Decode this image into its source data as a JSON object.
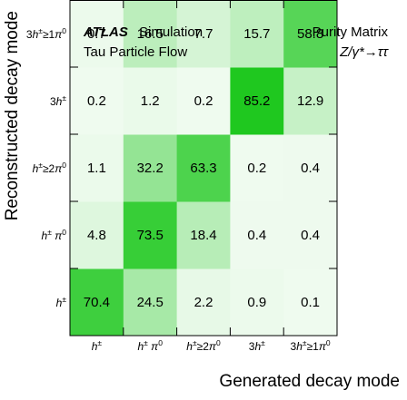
{
  "chart_data": {
    "type": "heatmap",
    "title": "Purity Matrix",
    "xlabel": "Generated decay mode",
    "ylabel": "Reconstructed decay mode",
    "experiment": "ATLAS",
    "experiment_suffix": "Simulation",
    "subtitle": "Tau Particle Flow",
    "process": "Z/γ*→ττ",
    "x_categories": [
      "h±",
      "h± π0",
      "h±≥2π0",
      "3h±",
      "3h±≥1π0"
    ],
    "y_categories": [
      "h±",
      "h± π0",
      "h±≥2π0",
      "3h±",
      "3h±≥1π0"
    ],
    "values": [
      [
        70.4,
        24.5,
        2.2,
        0.9,
        0.1
      ],
      [
        4.8,
        73.5,
        18.4,
        0.4,
        0.4
      ],
      [
        1.1,
        32.2,
        63.3,
        0.2,
        0.4
      ],
      [
        0.2,
        1.2,
        0.2,
        85.2,
        12.9
      ],
      [
        0.7,
        16.5,
        7.7,
        15.7,
        58.8
      ]
    ],
    "color_low": "#f0fbf0",
    "color_high": "#00c000"
  }
}
